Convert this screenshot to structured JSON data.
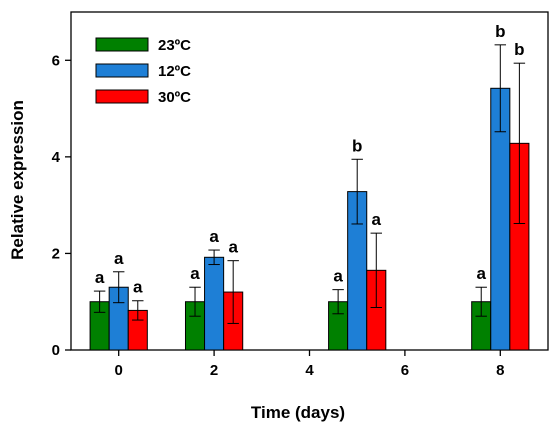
{
  "chart_data": {
    "type": "bar",
    "xlabel": "Time (days)",
    "ylabel": "Relative expression",
    "xlim": [
      -1,
      9
    ],
    "ylim": [
      0,
      7
    ],
    "x_ticks": [
      0,
      2,
      4,
      6,
      8
    ],
    "y_ticks": [
      0,
      2,
      4,
      6
    ],
    "grid": false,
    "legend_position": "top-left",
    "series": [
      {
        "name": "23ºC",
        "color": "#008000",
        "x": [
          0,
          2,
          5,
          8
        ],
        "values": [
          1.0,
          1.0,
          1.0,
          1.0
        ],
        "error": [
          0.22,
          0.3,
          0.25,
          0.3
        ],
        "labels": [
          "a",
          "a",
          "a",
          "a"
        ]
      },
      {
        "name": "12ºC",
        "color": "#1E7FD6",
        "x": [
          0,
          2,
          5,
          8
        ],
        "values": [
          1.3,
          1.92,
          3.28,
          5.42
        ],
        "error": [
          0.32,
          0.15,
          0.67,
          0.9
        ],
        "labels": [
          "a",
          "a",
          "b",
          "b"
        ]
      },
      {
        "name": "30ºC",
        "color": "#FF0000",
        "x": [
          0,
          2,
          5,
          8
        ],
        "values": [
          0.82,
          1.2,
          1.65,
          4.28
        ],
        "error": [
          0.2,
          0.65,
          0.77,
          1.66
        ],
        "labels": [
          "a",
          "a",
          "a",
          "b"
        ]
      }
    ]
  }
}
